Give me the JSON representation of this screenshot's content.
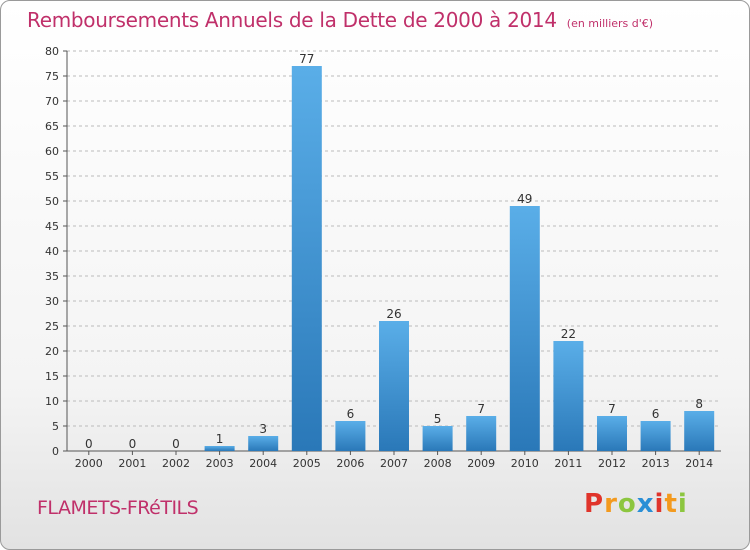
{
  "title": "Remboursements Annuels de la Dette de 2000 à 2014",
  "unit_note": "(en milliers d'€)",
  "commune": "FLAMETS-FRéTILS",
  "logo": {
    "letters": [
      "P",
      "r",
      "o",
      "x",
      "i",
      "t",
      "i"
    ],
    "colors": [
      "#e0342b",
      "#f39a1e",
      "#8cc63f",
      "#2a8fd6",
      "#e0342b",
      "#f39a1e",
      "#8cc63f"
    ]
  },
  "colors": {
    "bar_light": "#5aaee8",
    "bar_dark": "#2a78b8",
    "title": "#c0306a",
    "grid": "#bbbbbb"
  },
  "chart_data": {
    "type": "bar",
    "title": "Remboursements Annuels de la Dette de 2000 à 2014",
    "xlabel": "",
    "ylabel": "",
    "categories": [
      "2000",
      "2001",
      "2002",
      "2003",
      "2004",
      "2005",
      "2006",
      "2007",
      "2008",
      "2009",
      "2010",
      "2011",
      "2012",
      "2013",
      "2014"
    ],
    "values": [
      0,
      0,
      0,
      1,
      3,
      77,
      6,
      26,
      5,
      7,
      49,
      22,
      7,
      6,
      8
    ],
    "ylim": [
      0,
      80
    ],
    "yticks": [
      0,
      5,
      10,
      15,
      20,
      25,
      30,
      35,
      40,
      45,
      50,
      55,
      60,
      65,
      70,
      75,
      80
    ],
    "grid": "horizontal dashed",
    "legend": "none"
  }
}
